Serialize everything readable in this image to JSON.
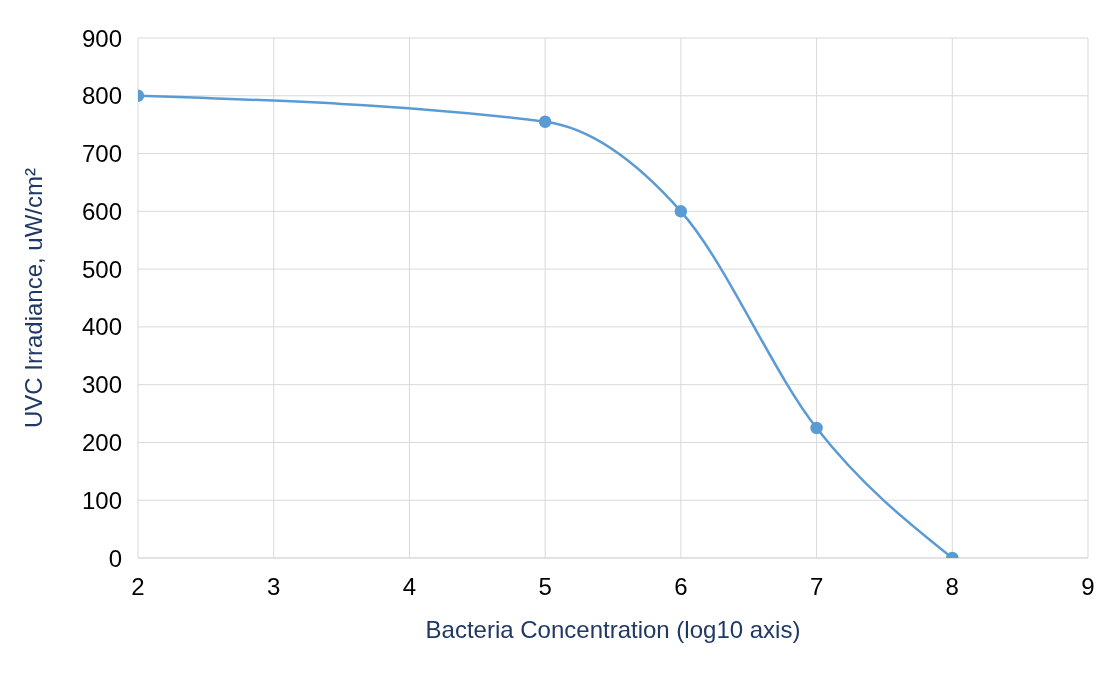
{
  "chart_data": {
    "type": "line",
    "xlabel": "Bacteria Concentration (log10 axis)",
    "ylabel": "UVC Irradiance, uW/cm²",
    "x": [
      2,
      5,
      6,
      7,
      8
    ],
    "series": [
      {
        "color": "#5b9bd5",
        "values": [
          800,
          755,
          600,
          225,
          0
        ]
      }
    ],
    "xlim": [
      2,
      9
    ],
    "xticks": [
      2,
      3,
      4,
      5,
      6,
      7,
      8,
      9
    ],
    "ylim": [
      0,
      900
    ],
    "yticks": [
      0,
      100,
      200,
      300,
      400,
      500,
      600,
      700,
      800,
      900
    ],
    "grid": true,
    "marker": "circle",
    "line_style": "solid"
  }
}
